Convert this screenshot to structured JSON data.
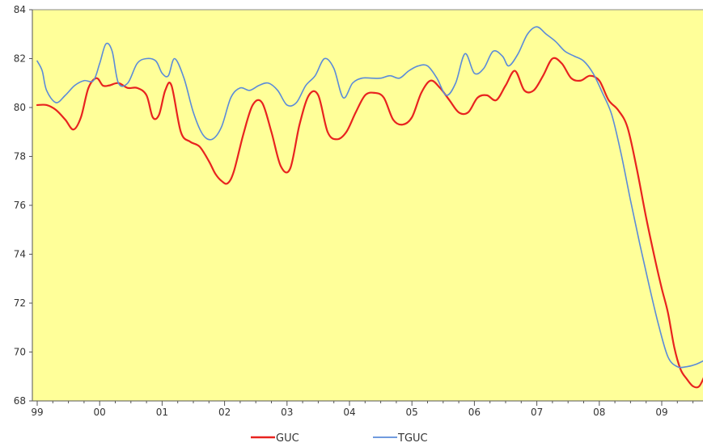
{
  "chart_data": {
    "type": "line",
    "title": "",
    "xlabel": "",
    "ylabel": "",
    "x_tick_labels": [
      "99",
      "00",
      "01",
      "02",
      "03",
      "04",
      "05",
      "06",
      "07",
      "08",
      "09"
    ],
    "y_tick_labels": [
      "68",
      "70",
      "72",
      "74",
      "76",
      "78",
      "80",
      "82",
      "84"
    ],
    "ylim": [
      68,
      84
    ],
    "xlim": [
      0,
      10.85
    ],
    "grid": false,
    "legend_position": "bottom",
    "plot_background": "#FFFF99",
    "series": [
      {
        "name": "GUC",
        "color": "#E8231F",
        "x": [
          0,
          0.15,
          0.3,
          0.45,
          0.58,
          0.7,
          0.82,
          0.95,
          1.05,
          1.15,
          1.3,
          1.45,
          1.6,
          1.75,
          1.85,
          1.95,
          2.05,
          2.15,
          2.3,
          2.45,
          2.6,
          2.75,
          2.85,
          2.95,
          3.05,
          3.15,
          3.3,
          3.45,
          3.6,
          3.75,
          3.9,
          4.05,
          4.2,
          4.35,
          4.5,
          4.65,
          4.8,
          4.95,
          5.1,
          5.25,
          5.4,
          5.55,
          5.7,
          5.85,
          6.0,
          6.15,
          6.3,
          6.45,
          6.6,
          6.75,
          6.9,
          7.05,
          7.2,
          7.35,
          7.5,
          7.65,
          7.8,
          7.95,
          8.1,
          8.25,
          8.4,
          8.55,
          8.7,
          8.85,
          9.0,
          9.15,
          9.3,
          9.45,
          9.6,
          9.75,
          9.9,
          10.0,
          10.1,
          10.2,
          10.3,
          10.4,
          10.5,
          10.6,
          10.7,
          10.85
        ],
        "values": [
          80.1,
          80.1,
          79.9,
          79.5,
          79.1,
          79.6,
          80.8,
          81.2,
          80.9,
          80.9,
          81.0,
          80.8,
          80.8,
          80.5,
          79.6,
          79.7,
          80.7,
          80.9,
          79.0,
          78.6,
          78.4,
          77.8,
          77.3,
          77.0,
          76.9,
          77.4,
          78.9,
          80.1,
          80.2,
          79.0,
          77.6,
          77.5,
          79.3,
          80.5,
          80.5,
          79.0,
          78.7,
          79.0,
          79.8,
          80.5,
          80.6,
          80.4,
          79.5,
          79.3,
          79.6,
          80.6,
          81.1,
          80.8,
          80.3,
          79.8,
          79.8,
          80.4,
          80.5,
          80.3,
          80.9,
          81.5,
          80.7,
          80.7,
          81.3,
          82.0,
          81.8,
          81.2,
          81.1,
          81.3,
          81.1,
          80.3,
          79.9,
          79.2,
          77.5,
          75.5,
          73.7,
          72.6,
          71.6,
          70.2,
          69.3,
          68.9,
          68.6,
          68.6,
          69.1,
          69.9
        ]
      },
      {
        "name": "TGUC",
        "color": "#5B8BD9",
        "x": [
          0,
          0.08,
          0.15,
          0.3,
          0.45,
          0.6,
          0.75,
          0.9,
          1.0,
          1.1,
          1.2,
          1.3,
          1.45,
          1.6,
          1.75,
          1.9,
          2.0,
          2.1,
          2.2,
          2.35,
          2.5,
          2.65,
          2.8,
          2.95,
          3.1,
          3.25,
          3.4,
          3.55,
          3.7,
          3.85,
          4.0,
          4.15,
          4.3,
          4.45,
          4.6,
          4.75,
          4.9,
          5.05,
          5.2,
          5.35,
          5.5,
          5.65,
          5.8,
          5.95,
          6.1,
          6.25,
          6.4,
          6.55,
          6.7,
          6.85,
          7.0,
          7.15,
          7.3,
          7.45,
          7.55,
          7.7,
          7.85,
          8.0,
          8.15,
          8.3,
          8.45,
          8.6,
          8.75,
          8.9,
          9.05,
          9.2,
          9.35,
          9.5,
          9.65,
          9.8,
          9.95,
          10.1,
          10.25,
          10.4,
          10.55,
          10.7,
          10.85
        ],
        "values": [
          81.9,
          81.5,
          80.7,
          80.2,
          80.5,
          80.9,
          81.1,
          81.1,
          81.8,
          82.6,
          82.3,
          81.0,
          81.0,
          81.8,
          82.0,
          81.9,
          81.4,
          81.3,
          82.0,
          81.2,
          79.8,
          78.9,
          78.7,
          79.2,
          80.4,
          80.8,
          80.7,
          80.9,
          81.0,
          80.7,
          80.1,
          80.2,
          80.9,
          81.3,
          82.0,
          81.6,
          80.4,
          81.0,
          81.2,
          81.2,
          81.2,
          81.3,
          81.2,
          81.5,
          81.7,
          81.7,
          81.2,
          80.5,
          81.0,
          82.2,
          81.4,
          81.6,
          82.3,
          82.1,
          81.7,
          82.2,
          83.0,
          83.3,
          83.0,
          82.7,
          82.3,
          82.1,
          81.9,
          81.4,
          80.6,
          79.7,
          78.1,
          76.2,
          74.4,
          72.7,
          71.1,
          69.8,
          69.4,
          69.4,
          69.5,
          69.7,
          70.1
        ]
      }
    ]
  }
}
